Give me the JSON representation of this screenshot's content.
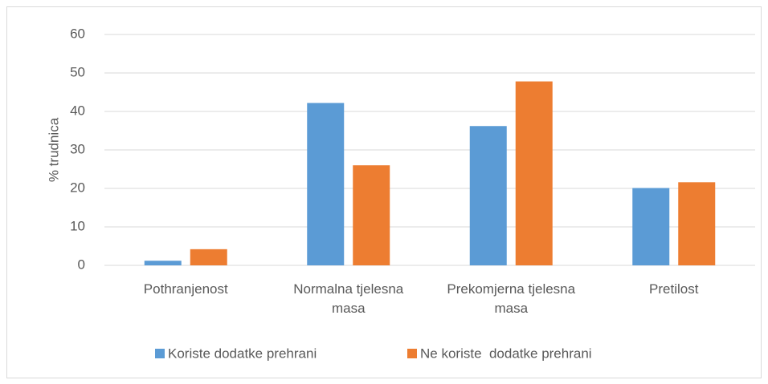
{
  "chart_data": {
    "type": "bar",
    "y_label": "% trudnica",
    "categories": [
      "Pothranjenost",
      "Normalna tjelesna masa",
      "Prekomjerna tjelesna masa",
      "Pretilost"
    ],
    "series": [
      {
        "name": "Koriste dodatke prehrani",
        "color": "#5b9bd5",
        "values": [
          1.2,
          42.2,
          36.2,
          20.1
        ]
      },
      {
        "name": "Ne koriste  dodatke prehrani",
        "color": "#ed7d31",
        "values": [
          4.2,
          26.0,
          47.8,
          21.6
        ]
      }
    ],
    "ylim": [
      0,
      60
    ],
    "yticks": [
      0,
      10,
      20,
      30,
      40,
      50,
      60
    ],
    "grid": true,
    "legend": "bottom"
  }
}
